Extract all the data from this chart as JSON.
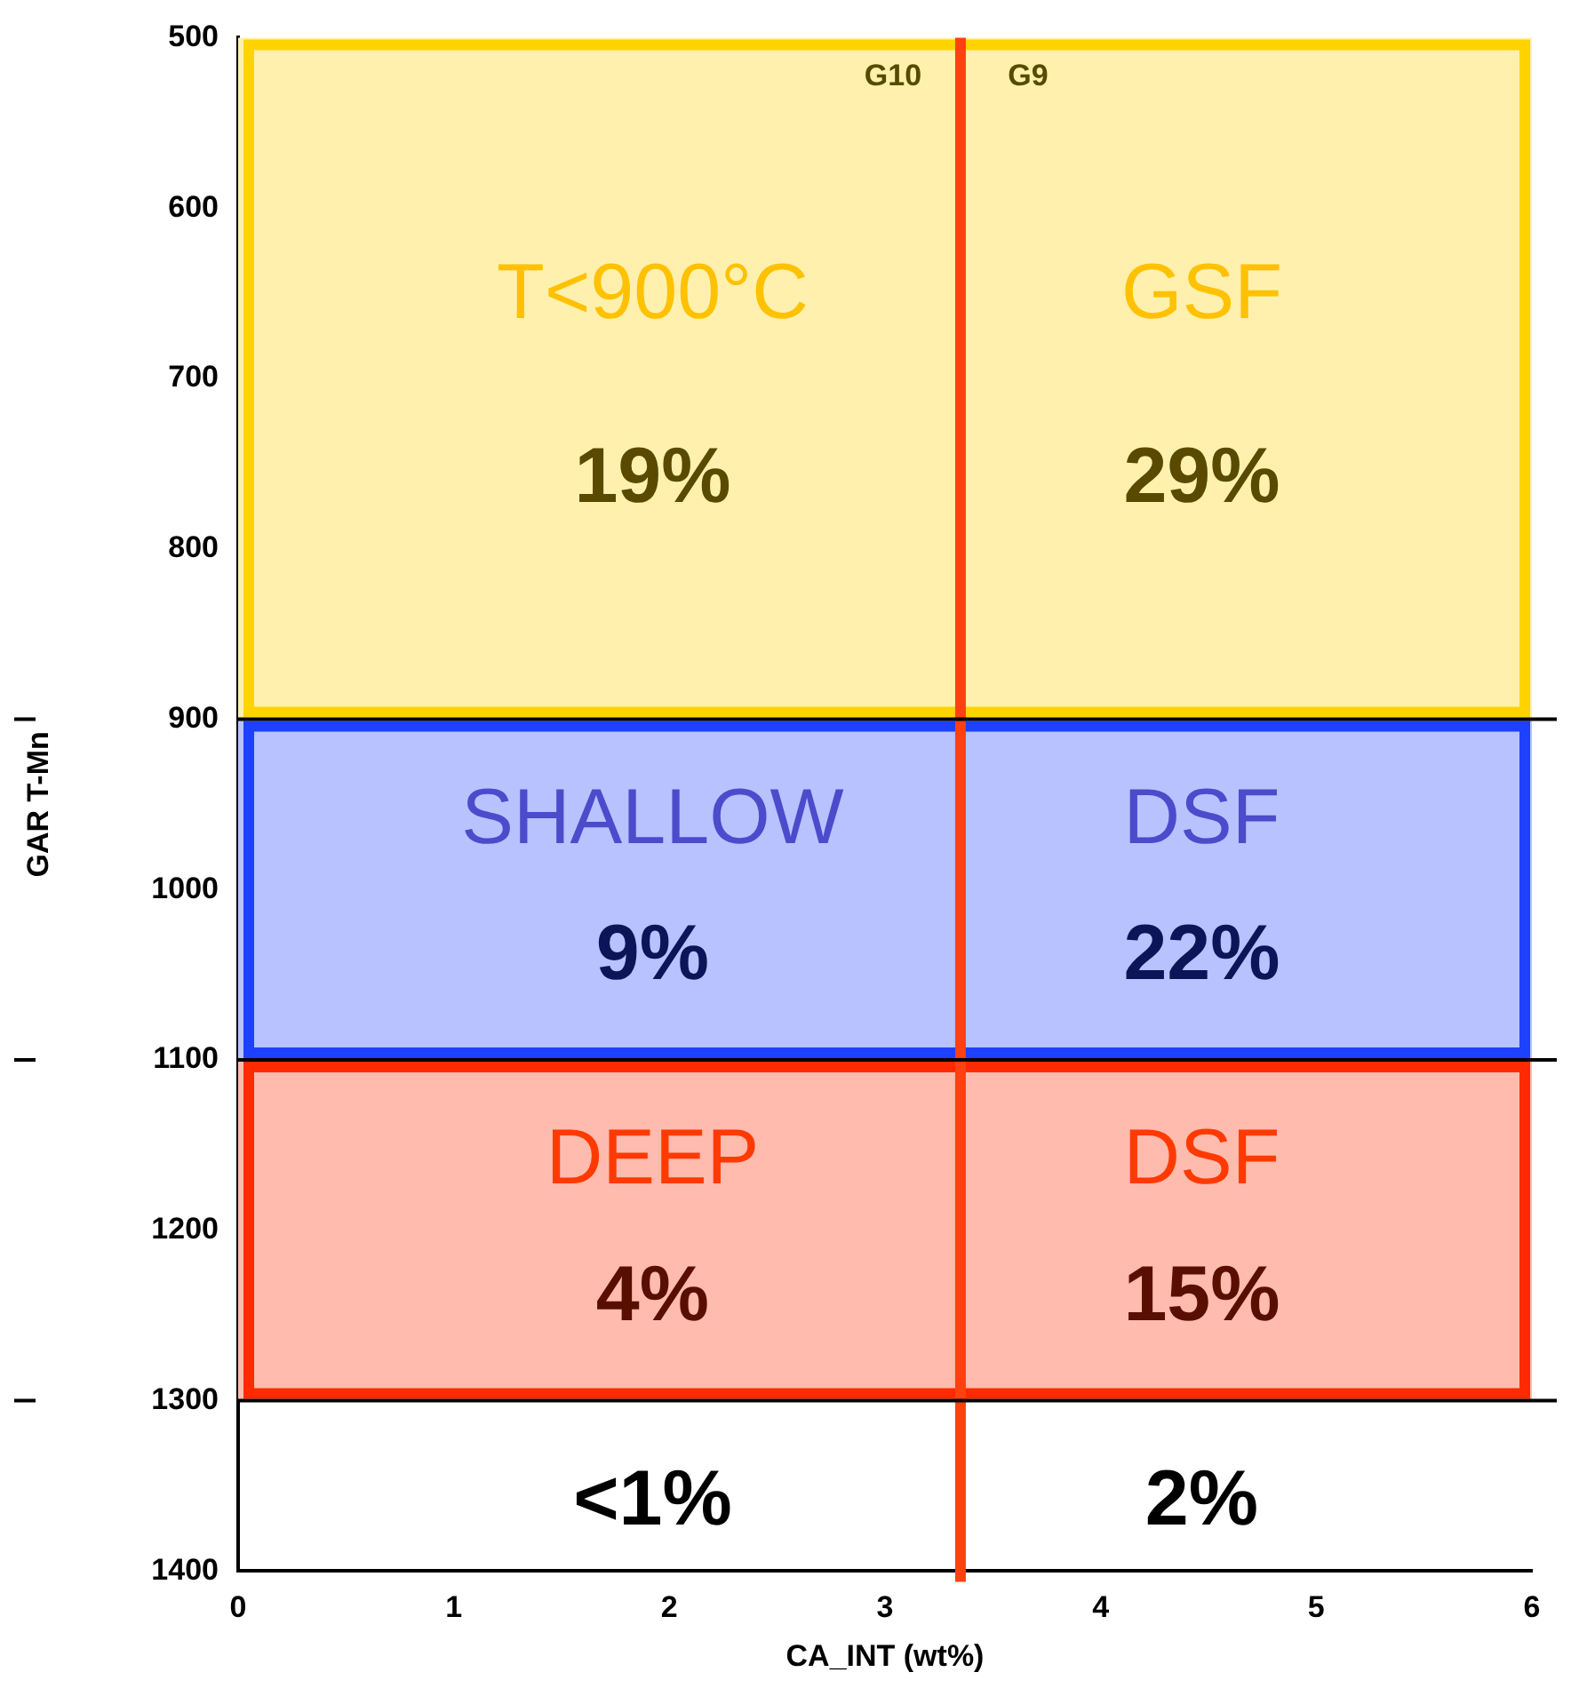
{
  "chart_data": {
    "type": "scatter",
    "xlabel": "CA_INT (wt%)",
    "ylabel": "GAR T-Mn",
    "xlim": [
      0,
      6
    ],
    "xticks": [
      0,
      1,
      2,
      3,
      4,
      5,
      6
    ],
    "ylim": [
      1400,
      500
    ],
    "yticks": [
      500,
      600,
      700,
      800,
      900,
      1000,
      1100,
      1200,
      1300,
      1400
    ],
    "bands": [
      {
        "axis": "y",
        "from": 500,
        "to": 900,
        "color": "#fff1ad"
      },
      {
        "axis": "y",
        "from": 900,
        "to": 1100,
        "color": "#b7c2ff"
      },
      {
        "axis": "y",
        "from": 1100,
        "to": 1300,
        "color": "#ffbbad"
      }
    ],
    "ref_lines": [
      {
        "axis": "x",
        "value": 3.35,
        "color": "#ff4010"
      },
      {
        "axis": "y",
        "value": 900,
        "color": "#000000"
      },
      {
        "axis": "y",
        "value": 1100,
        "color": "#000000"
      },
      {
        "axis": "y",
        "value": 1300,
        "color": "#000000"
      }
    ],
    "annotations": [
      "G10",
      "G9",
      "T<900°C",
      "GSF",
      "19%",
      "29%",
      "SHALLOW",
      "DSF",
      "9%",
      "22%",
      "DEEP",
      "DSF",
      "4%",
      "15%",
      "<1%",
      "2%"
    ]
  }
}
